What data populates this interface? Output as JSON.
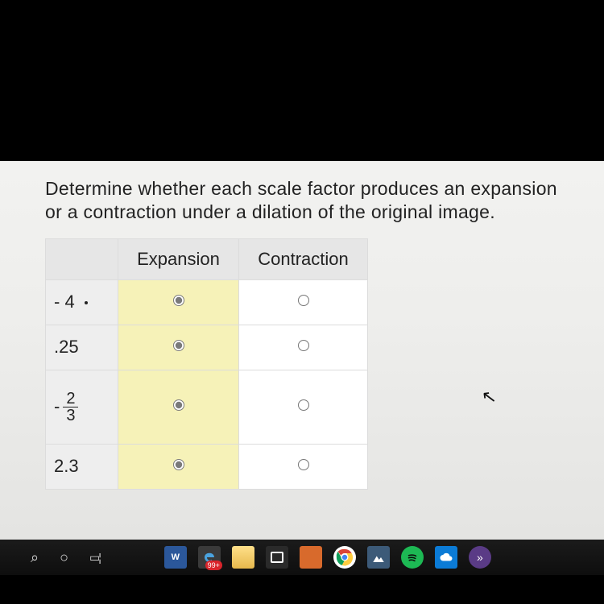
{
  "question": {
    "prompt": "Determine whether each scale factor produces an expansion or a contraction under a dilation of the original image."
  },
  "table": {
    "columns": [
      "",
      "Expansion",
      "Contraction"
    ],
    "rows": [
      {
        "label_html": "- 4 <span class='dot'></span>",
        "selected": "expansion",
        "height": "short"
      },
      {
        "label_html": ".25",
        "selected": "expansion",
        "height": "short"
      },
      {
        "label_html": "<span class='leading-minus'>-</span><span class='frac'><span class='num'>2</span><span class='den'>3</span></span>",
        "selected": "expansion",
        "height": "tall"
      },
      {
        "label_html": "2.3",
        "selected": "expansion",
        "height": "short"
      }
    ],
    "colors": {
      "header_bg": "#e6e6e6",
      "label_bg": "#eeeeee",
      "selected_col_bg": "#f6f2b8",
      "other_col_bg": "#ffffff",
      "border": "#dcdcdc"
    }
  },
  "taskbar": {
    "badge": "99+",
    "icons": [
      "word",
      "edge",
      "folder",
      "store",
      "orange",
      "chrome",
      "mountain",
      "spotify",
      "cloud",
      "more"
    ]
  }
}
